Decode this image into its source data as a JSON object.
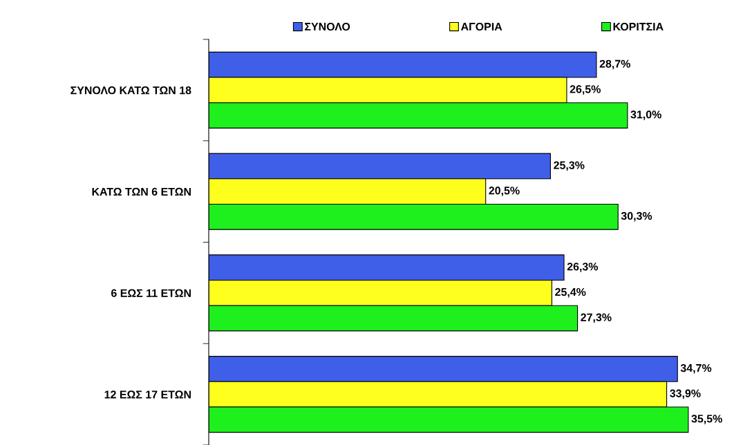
{
  "chart_data": {
    "type": "bar",
    "orientation": "horizontal",
    "categories": [
      "ΣΥΝΟΛΟ ΚΑΤΩ ΤΩΝ 18",
      "ΚΑΤΩ ΤΩΝ 6 ΕΤΩΝ",
      "6 ΕΩΣ 11 ΕΤΩΝ",
      "12 ΕΩΣ 17 ΕΤΩΝ"
    ],
    "series": [
      {
        "name": "ΣΥΝΟΛΟ",
        "color": "#3f5fe8",
        "values": [
          28.7,
          25.3,
          26.3,
          34.7
        ],
        "value_labels": [
          "28,7%",
          "25,3%",
          "26,3%",
          "34,7%"
        ]
      },
      {
        "name": "ΑΓΟΡΙΑ",
        "color": "#ffff1e",
        "values": [
          26.5,
          20.5,
          25.4,
          33.9
        ],
        "value_labels": [
          "26,5%",
          "20,5%",
          "25,4%",
          "33,9%"
        ]
      },
      {
        "name": "ΚΟΡΙΤΣΙΑ",
        "color": "#1ef01e",
        "values": [
          31.0,
          30.3,
          27.3,
          35.5
        ],
        "value_labels": [
          "31,0%",
          "30,3%",
          "27,3%",
          "35,5%"
        ]
      }
    ],
    "legend": "top",
    "grid": false,
    "tick_labels": "y"
  }
}
